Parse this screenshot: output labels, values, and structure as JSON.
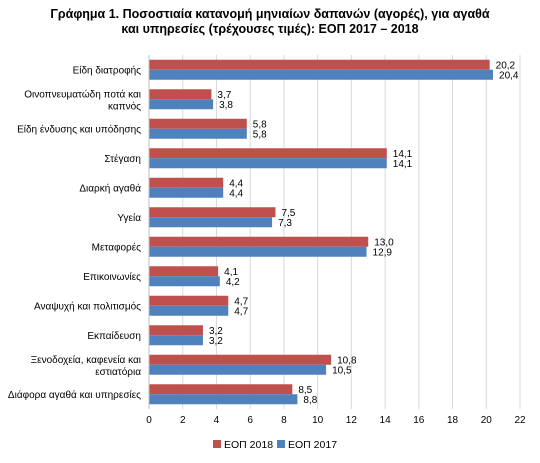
{
  "chart_data": {
    "type": "bar",
    "orientation": "horizontal",
    "title_line1": "Γράφημα 1. Ποσοστιαία κατανομή μηνιαίων δαπανών (αγορές), για αγαθά",
    "title_line2": "και υπηρεσίες (τρέχουσες τιμές): ΕΟΠ 2017 – 2018",
    "categories": [
      [
        "Είδη διατροφής"
      ],
      [
        "Οινοπνευματώδη ποτά και",
        "καπνός"
      ],
      [
        "Είδη ένδυσης και υπόδησης"
      ],
      [
        "Στέγαση"
      ],
      [
        "Διαρκή αγαθά"
      ],
      [
        "Υγεία"
      ],
      [
        "Μεταφορές"
      ],
      [
        "Επικοινωνίες"
      ],
      [
        "Αναψυχή και πολιτισμός"
      ],
      [
        "Εκπαίδευση"
      ],
      [
        "Ξενοδοχεία, καφενεία και",
        "εστιατόρια"
      ],
      [
        "Διάφορα αγαθά και υπηρεσίες"
      ]
    ],
    "series": [
      {
        "name": "ΕΟΠ 2018",
        "color": "#c0504d",
        "values": [
          20.2,
          3.7,
          5.8,
          14.1,
          4.4,
          7.5,
          13.0,
          4.1,
          4.7,
          3.2,
          10.8,
          8.5
        ],
        "labels": [
          "20,2",
          "3,7",
          "5,8",
          "14,1",
          "4,4",
          "7,5",
          "13,0",
          "4,1",
          "4,7",
          "3,2",
          "10,8",
          "8,5"
        ]
      },
      {
        "name": "ΕΟΠ 2017",
        "color": "#4f81bd",
        "values": [
          20.4,
          3.8,
          5.8,
          14.1,
          4.4,
          7.3,
          12.9,
          4.2,
          4.7,
          3.2,
          10.5,
          8.8
        ],
        "labels": [
          "20,4",
          "3,8",
          "5,8",
          "14,1",
          "4,4",
          "7,3",
          "12,9",
          "4,2",
          "4,7",
          "3,2",
          "10,5",
          "8,8"
        ]
      }
    ],
    "xlim": [
      0,
      22
    ],
    "xticks": [
      0,
      2,
      4,
      6,
      8,
      10,
      12,
      14,
      16,
      18,
      20,
      22
    ],
    "grid": true,
    "legend_position": "bottom"
  }
}
